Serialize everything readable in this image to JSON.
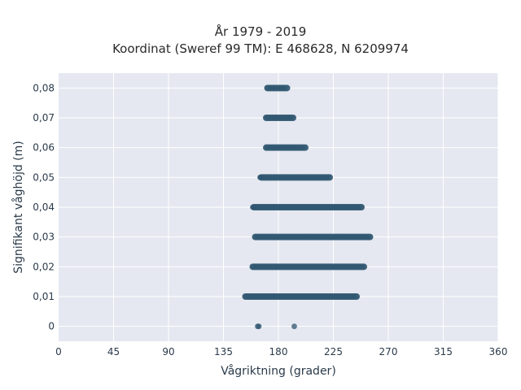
{
  "chart_data": {
    "type": "scatter",
    "title": "År 1979 - 2019",
    "subtitle": "Koordinat (Sweref 99 TM): E 468628, N 6209974",
    "xlabel": "Vågriktning (grader)",
    "ylabel": "Signifikant våghöjd (m)",
    "xlim": [
      0,
      360
    ],
    "ylim": [
      -0.005,
      0.085
    ],
    "xticks": [
      "0",
      "45",
      "90",
      "135",
      "180",
      "225",
      "270",
      "315",
      "360"
    ],
    "xtick_values": [
      0,
      45,
      90,
      135,
      180,
      225,
      270,
      315,
      360
    ],
    "yticks": [
      "0",
      "0,01",
      "0,02",
      "0,03",
      "0,04",
      "0,05",
      "0,06",
      "0,07",
      "0,08"
    ],
    "ytick_values": [
      0,
      0.01,
      0.02,
      0.03,
      0.04,
      0.05,
      0.06,
      0.07,
      0.08
    ],
    "grid": true,
    "point_color": "#2f5570",
    "bands": [
      {
        "y": 0.08,
        "x_min": 171,
        "x_max": 187
      },
      {
        "y": 0.07,
        "x_min": 170,
        "x_max": 192
      },
      {
        "y": 0.06,
        "x_min": 170,
        "x_max": 202
      },
      {
        "y": 0.05,
        "x_min": 166,
        "x_max": 222
      },
      {
        "y": 0.04,
        "x_min": 160,
        "x_max": 248
      },
      {
        "y": 0.03,
        "x_min": 161,
        "x_max": 255
      },
      {
        "y": 0.02,
        "x_min": 159,
        "x_max": 250
      },
      {
        "y": 0.01,
        "x_min": 153,
        "x_max": 244
      }
    ],
    "points": [
      {
        "x": 163,
        "y": 0
      },
      {
        "x": 164,
        "y": 0
      },
      {
        "x": 193,
        "y": 0
      },
      {
        "x": 159,
        "y": 0.04
      },
      {
        "x": 165,
        "y": 0.05
      }
    ]
  },
  "colors": {
    "plot_bg": "#e5e8f0",
    "grid": "#ffffff",
    "points": "#2f5570"
  }
}
